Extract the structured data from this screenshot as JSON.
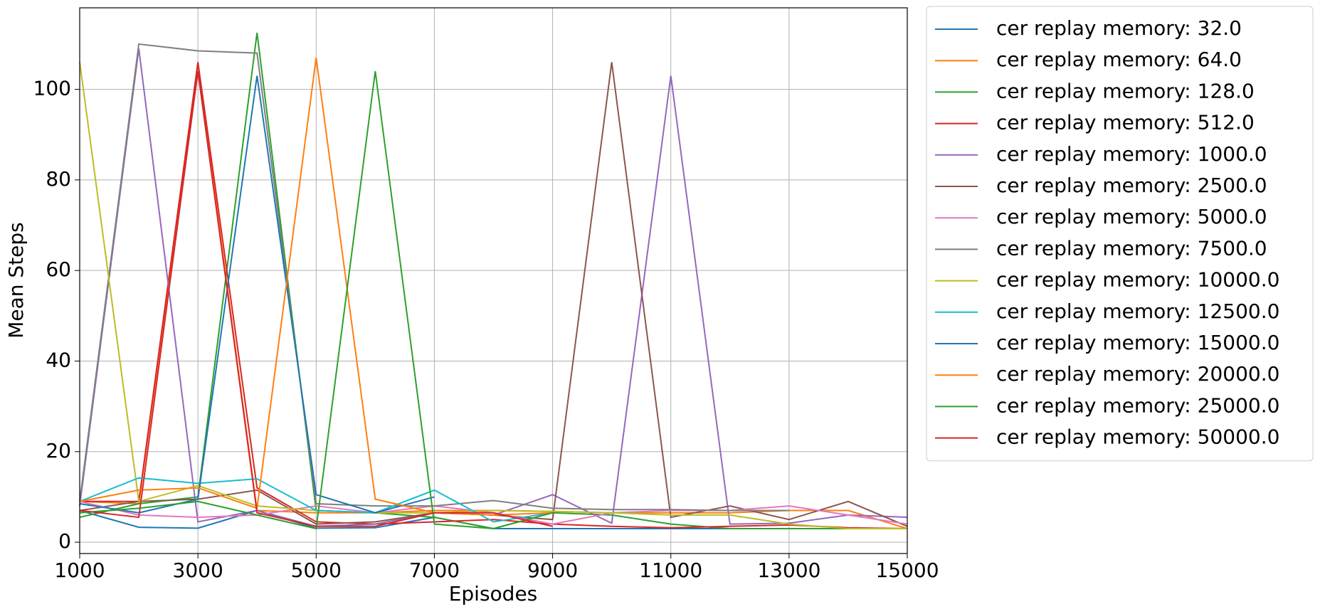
{
  "chart_data": {
    "type": "line",
    "xlabel": "Episodes",
    "ylabel": "Mean Steps",
    "x": [
      1000,
      2000,
      3000,
      4000,
      5000,
      6000,
      7000,
      8000,
      9000,
      10000,
      11000,
      12000,
      13000,
      14000,
      15000
    ],
    "xlim": [
      1000,
      15000
    ],
    "xticks": [
      1000,
      3000,
      5000,
      7000,
      9000,
      11000,
      13000,
      15000
    ],
    "ylim": [
      -2.5,
      118
    ],
    "yticks": [
      0,
      20,
      40,
      60,
      80,
      100
    ],
    "grid": true,
    "legend": "outside right",
    "series": [
      {
        "name": "cer replay memory: 32.0",
        "color": "#1f77b4",
        "values": [
          7,
          3.3,
          3.1,
          7,
          3.1,
          3.2,
          5.5,
          3,
          3,
          3,
          3,
          3,
          3,
          3,
          3
        ]
      },
      {
        "name": "cer replay memory: 64.0",
        "color": "#ff7f0e",
        "values": [
          9,
          8.5,
          105,
          7,
          6.5,
          6.5,
          7,
          7,
          6.8,
          6.5,
          6.5,
          6.5,
          7,
          7,
          3
        ]
      },
      {
        "name": "cer replay memory: 128.0",
        "color": "#2ca02c",
        "values": [
          5.5,
          8.5,
          10,
          112.5,
          7,
          6.5,
          5.5,
          3,
          6.5,
          6,
          4,
          3,
          3,
          3,
          3
        ]
      },
      {
        "name": "cer replay memory: 512.0",
        "color": "#d62728",
        "values": [
          9,
          9,
          106,
          12,
          4.5,
          4,
          4.5,
          5,
          4,
          3.5,
          3.2,
          3.5,
          3.8,
          3.2,
          3
        ]
      },
      {
        "name": "cer replay memory: 1000.0",
        "color": "#9467bd",
        "values": [
          8,
          109,
          4.5,
          7,
          3.5,
          4,
          6.5,
          6,
          10.5,
          4.2,
          103,
          4,
          4.2,
          6,
          5.5
        ]
      },
      {
        "name": "cer replay memory: 2500.0",
        "color": "#8c564b",
        "values": [
          7,
          9,
          9.5,
          11.5,
          4,
          4.5,
          6.5,
          6,
          5,
          106,
          5.5,
          8,
          5,
          9,
          3.5
        ]
      },
      {
        "name": "cer replay memory: 5000.0",
        "color": "#e377c2",
        "values": [
          9,
          6,
          5.5,
          6,
          8,
          6.5,
          8,
          6.5,
          4,
          6.5,
          7,
          7,
          8,
          6,
          4
        ]
      },
      {
        "name": "cer replay memory: 7500.0",
        "color": "#7f7f7f",
        "values": [
          9,
          110,
          108.5,
          108,
          8.5,
          8,
          8,
          9.2,
          7.5,
          7.2,
          7.2,
          7,
          7,
          null,
          null
        ]
      },
      {
        "name": "cer replay memory: 10000.0",
        "color": "#bcbd22",
        "values": [
          106,
          9,
          12.5,
          8,
          7,
          6.5,
          6.5,
          7,
          6.8,
          6.5,
          6,
          6,
          4,
          3,
          3
        ]
      },
      {
        "name": "cer replay memory: 12500.0",
        "color": "#17becf",
        "values": [
          9,
          14.2,
          13,
          14,
          7,
          6.5,
          11.5,
          4.5,
          6.5,
          null,
          null,
          null,
          null,
          null,
          null
        ]
      },
      {
        "name": "cer replay memory: 15000.0",
        "color": "#1f77b4",
        "values": [
          8.5,
          6.5,
          9.5,
          103,
          10.5,
          6.5,
          10,
          null,
          null,
          null,
          null,
          null,
          null,
          null,
          null
        ]
      },
      {
        "name": "cer replay memory: 20000.0",
        "color": "#ff7f0e",
        "values": [
          9,
          11.5,
          12,
          7.5,
          107,
          9.5,
          6.5,
          6,
          6.5,
          null,
          null,
          null,
          null,
          null,
          null
        ]
      },
      {
        "name": "cer replay memory: 25000.0",
        "color": "#2ca02c",
        "values": [
          6.5,
          7.5,
          9,
          6,
          3,
          104,
          4,
          3,
          6.5,
          null,
          null,
          null,
          null,
          null,
          null
        ]
      },
      {
        "name": "cer replay memory: 50000.0",
        "color": "#d62728",
        "values": [
          7,
          5.5,
          104,
          6.5,
          3.5,
          3.5,
          6.5,
          6.5,
          3.5,
          null,
          null,
          null,
          null,
          null,
          null
        ]
      }
    ]
  }
}
